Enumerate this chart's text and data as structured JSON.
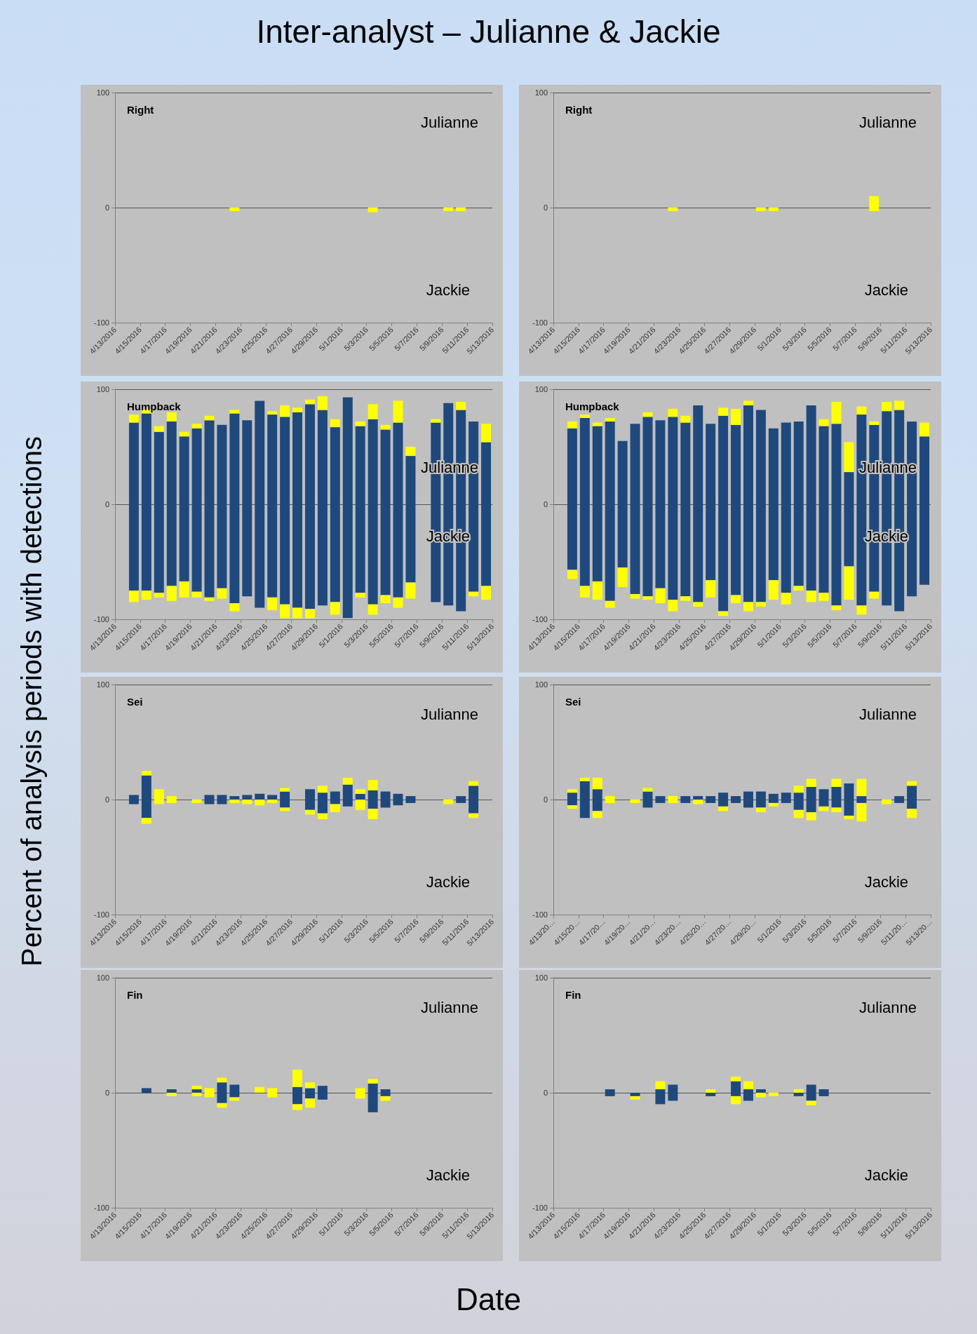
{
  "chart_data": [
    {
      "type": "bar",
      "title": "Right",
      "stacked": true,
      "grid": "y",
      "annotations": [
        "Julianne",
        "Jackie",
        "Inter-analyst – Julianne & Jackie"
      ],
      "ylabel": "Percent of analysis periods with detections",
      "x": [
        "2016-04-22T12:00",
        "2016-04-23T12:00",
        "2016-04-24T12:00",
        "2016-04-25T12:00",
        "2016-04-26T12:00",
        "2016-04-27T12:00",
        "2016-04-28T12:00",
        "2016-04-29T12:00",
        "2016-04-30T12:00",
        "2016-05-01T12:00",
        "2016-05-02T12:00",
        "2016-05-03T12:00",
        "2016-05-04T12:00",
        "2016-05-05T12:00",
        "2016-05-06T12:00",
        "2016-05-07T12:00",
        "2016-05-08T12:00",
        "2016-05-09T12:00",
        "2016-05-10T12:00"
      ],
      "xlim": [
        "2016-04-13",
        "2016-05-13"
      ],
      "xticks": [
        {
          "value": "2016-04-13",
          "label": "4/13/2016"
        },
        {
          "value": "2016-04-15",
          "label": "4/15/2016"
        },
        {
          "value": "2016-04-17",
          "label": "4/17/2016"
        },
        {
          "value": "2016-04-19",
          "label": "4/19/2016"
        },
        {
          "value": "2016-04-21",
          "label": "4/21/2016"
        },
        {
          "value": "2016-04-23",
          "label": "4/23/2016"
        },
        {
          "value": "2016-04-25",
          "label": "4/25/2016"
        },
        {
          "value": "2016-04-27",
          "label": "4/27/2016"
        },
        {
          "value": "2016-04-29",
          "label": "4/29/2016"
        },
        {
          "value": "2016-05-01",
          "label": "5/1/2016"
        },
        {
          "value": "2016-05-03",
          "label": "5/3/2016"
        },
        {
          "value": "2016-05-05",
          "label": "5/5/2016"
        },
        {
          "value": "2016-05-07",
          "label": "5/7/2016"
        },
        {
          "value": "2016-05-09",
          "label": "5/9/2016"
        },
        {
          "value": "2016-05-11",
          "label": "5/11/2016"
        },
        {
          "value": "2016-05-13",
          "label": "5/13/2016"
        }
      ],
      "ylim": [
        -100,
        100
      ],
      "yticks": [
        -100,
        0,
        100
      ],
      "series": [
        {
          "color": "#ffff00",
          "values": [
            -3,
            null,
            null,
            null,
            null,
            null,
            null,
            null,
            null,
            null,
            null,
            -4,
            null,
            null,
            null,
            null,
            null,
            -3,
            -3
          ]
        }
      ]
    },
    {
      "type": "bar",
      "title": "Right",
      "stacked": true,
      "grid": "y",
      "annotations": [
        "Julianne",
        "Jackie"
      ],
      "x": [
        "2016-04-22T12:00",
        "2016-04-23T12:00",
        "2016-04-24T12:00",
        "2016-04-25T12:00",
        "2016-04-26T12:00",
        "2016-04-27T12:00",
        "2016-04-28T12:00",
        "2016-04-29T12:00",
        "2016-04-30T12:00",
        "2016-05-01T12:00",
        "2016-05-02T12:00",
        "2016-05-03T12:00",
        "2016-05-04T12:00",
        "2016-05-05T12:00",
        "2016-05-06T12:00",
        "2016-05-07T12:00",
        "2016-05-08T12:00"
      ],
      "xlim": [
        "2016-04-13",
        "2016-05-13"
      ],
      "xticks": [
        {
          "value": "2016-04-13",
          "label": "4/13/2016"
        },
        {
          "value": "2016-04-15",
          "label": "4/15/2016"
        },
        {
          "value": "2016-04-17",
          "label": "4/17/2016"
        },
        {
          "value": "2016-04-19",
          "label": "4/19/2016"
        },
        {
          "value": "2016-04-21",
          "label": "4/21/2016"
        },
        {
          "value": "2016-04-23",
          "label": "4/23/2016"
        },
        {
          "value": "2016-04-25",
          "label": "4/25/2016"
        },
        {
          "value": "2016-04-27",
          "label": "4/27/2016"
        },
        {
          "value": "2016-04-29",
          "label": "4/29/2016"
        },
        {
          "value": "2016-05-01",
          "label": "5/1/2016"
        },
        {
          "value": "2016-05-03",
          "label": "5/3/2016"
        },
        {
          "value": "2016-05-05",
          "label": "5/5/2016"
        },
        {
          "value": "2016-05-07",
          "label": "5/7/2016"
        },
        {
          "value": "2016-05-09",
          "label": "5/9/2016"
        },
        {
          "value": "2016-05-11",
          "label": "5/11/2016"
        },
        {
          "value": "2016-05-13",
          "label": "5/13/2016"
        }
      ],
      "ylim": [
        -100,
        100
      ],
      "yticks": [
        -100,
        0,
        100
      ],
      "series": [
        {
          "color": "#ffff00",
          "values": [
            null,
            null,
            null,
            null,
            null,
            null,
            null,
            null,
            null,
            null,
            null,
            null,
            null,
            null,
            null,
            null,
            10
          ]
        },
        {
          "color": "#ffff00",
          "values": [
            -3,
            null,
            null,
            null,
            null,
            null,
            null,
            -3,
            -3,
            null,
            null,
            null,
            null,
            null,
            null,
            null,
            -3
          ]
        }
      ]
    },
    {
      "type": "bar",
      "title": "Humpback",
      "stacked": true,
      "grid": "y",
      "annotations": [
        "Julianne",
        "Jackie"
      ],
      "x": [
        "2016-04-14T12:00",
        "2016-04-15T12:00",
        "2016-04-16T12:00",
        "2016-04-17T12:00",
        "2016-04-18T12:00",
        "2016-04-19T12:00",
        "2016-04-20T12:00",
        "2016-04-21T12:00",
        "2016-04-22T12:00",
        "2016-04-23T12:00",
        "2016-04-24T12:00",
        "2016-04-25T12:00",
        "2016-04-26T12:00",
        "2016-04-27T12:00",
        "2016-04-28T12:00",
        "2016-04-29T12:00",
        "2016-04-30T12:00",
        "2016-05-01T12:00",
        "2016-05-02T12:00",
        "2016-05-03T12:00",
        "2016-05-04T12:00",
        "2016-05-05T12:00",
        "2016-05-06T12:00",
        "2016-05-07T12:00",
        "2016-05-08T12:00",
        "2016-05-09T12:00",
        "2016-05-10T12:00",
        "2016-05-11T12:00",
        "2016-05-12T12:00"
      ],
      "xlim": [
        "2016-04-13",
        "2016-05-13"
      ],
      "xticks": [
        {
          "value": "2016-04-13",
          "label": "4/13/2016"
        },
        {
          "value": "2016-04-15",
          "label": "4/15/2016"
        },
        {
          "value": "2016-04-17",
          "label": "4/17/2016"
        },
        {
          "value": "2016-04-19",
          "label": "4/19/2016"
        },
        {
          "value": "2016-04-21",
          "label": "4/21/2016"
        },
        {
          "value": "2016-04-23",
          "label": "4/23/2016"
        },
        {
          "value": "2016-04-25",
          "label": "4/25/2016"
        },
        {
          "value": "2016-04-27",
          "label": "4/27/2016"
        },
        {
          "value": "2016-04-29",
          "label": "4/29/2016"
        },
        {
          "value": "2016-05-01",
          "label": "5/1/2016"
        },
        {
          "value": "2016-05-03",
          "label": "5/3/2016"
        },
        {
          "value": "2016-05-05",
          "label": "5/5/2016"
        },
        {
          "value": "2016-05-07",
          "label": "5/7/2016"
        },
        {
          "value": "2016-05-09",
          "label": "5/9/2016"
        },
        {
          "value": "2016-05-11",
          "label": "5/11/2016"
        },
        {
          "value": "2016-05-13",
          "label": "5/13/2016"
        }
      ],
      "ylim": [
        -100,
        100
      ],
      "yticks": [
        -100,
        0,
        100
      ],
      "series": [
        {
          "color": "#1f497d",
          "values": [
            71,
            79,
            63,
            72,
            59,
            66,
            73,
            69,
            79,
            73,
            90,
            78,
            76,
            80,
            87,
            82,
            67,
            93,
            68,
            74,
            65,
            71,
            42,
            null,
            71,
            88,
            82,
            72,
            54
          ]
        },
        {
          "color": "#ffff00",
          "values": [
            7,
            4,
            5,
            8,
            4,
            4,
            4,
            null,
            3,
            null,
            null,
            3,
            10,
            4,
            4,
            12,
            7,
            null,
            4,
            13,
            4,
            19,
            8,
            null,
            3,
            null,
            7,
            null,
            16
          ]
        },
        {
          "color": "#1f497d",
          "values": [
            -75,
            -75,
            -77,
            -71,
            -67,
            -76,
            -81,
            -73,
            -86,
            -80,
            -90,
            -81,
            -87,
            -90,
            -91,
            -88,
            -85,
            -99,
            -77,
            -87,
            -79,
            -81,
            -68,
            null,
            -85,
            -88,
            -93,
            -76,
            -71
          ]
        },
        {
          "color": "#ffff00",
          "values": [
            -10,
            -8,
            -4,
            -13,
            -14,
            -5,
            -3,
            -9,
            -7,
            null,
            null,
            -11,
            -12,
            -9,
            -8,
            null,
            -11,
            null,
            -4,
            -9,
            -7,
            -9,
            -14,
            null,
            null,
            null,
            null,
            -4,
            -12
          ]
        }
      ]
    },
    {
      "type": "bar",
      "title": "Humpback",
      "stacked": true,
      "grid": "y",
      "annotations": [
        "Julianne",
        "Jackie"
      ],
      "x": [
        "2016-04-14T12:00",
        "2016-04-15T12:00",
        "2016-04-16T12:00",
        "2016-04-17T12:00",
        "2016-04-18T12:00",
        "2016-04-19T12:00",
        "2016-04-20T12:00",
        "2016-04-21T12:00",
        "2016-04-22T12:00",
        "2016-04-23T12:00",
        "2016-04-24T12:00",
        "2016-04-25T12:00",
        "2016-04-26T12:00",
        "2016-04-27T12:00",
        "2016-04-28T12:00",
        "2016-04-29T12:00",
        "2016-04-30T12:00",
        "2016-05-01T12:00",
        "2016-05-02T12:00",
        "2016-05-03T12:00",
        "2016-05-04T12:00",
        "2016-05-05T12:00",
        "2016-05-06T12:00",
        "2016-05-07T12:00",
        "2016-05-08T12:00",
        "2016-05-09T12:00",
        "2016-05-10T12:00",
        "2016-05-11T12:00",
        "2016-05-12T12:00"
      ],
      "xlim": [
        "2016-04-13",
        "2016-05-13"
      ],
      "xticks": [
        {
          "value": "2016-04-13",
          "label": "4/13/2016"
        },
        {
          "value": "2016-04-15",
          "label": "4/15/2016"
        },
        {
          "value": "2016-04-17",
          "label": "4/17/2016"
        },
        {
          "value": "2016-04-19",
          "label": "4/19/2016"
        },
        {
          "value": "2016-04-21",
          "label": "4/21/2016"
        },
        {
          "value": "2016-04-23",
          "label": "4/23/2016"
        },
        {
          "value": "2016-04-25",
          "label": "4/25/2016"
        },
        {
          "value": "2016-04-27",
          "label": "4/27/2016"
        },
        {
          "value": "2016-04-29",
          "label": "4/29/2016"
        },
        {
          "value": "2016-05-01",
          "label": "5/1/2016"
        },
        {
          "value": "2016-05-03",
          "label": "5/3/2016"
        },
        {
          "value": "2016-05-05",
          "label": "5/5/2016"
        },
        {
          "value": "2016-05-07",
          "label": "5/7/2016"
        },
        {
          "value": "2016-05-09",
          "label": "5/9/2016"
        },
        {
          "value": "2016-05-11",
          "label": "5/11/2016"
        },
        {
          "value": "2016-05-13",
          "label": "5/13/2016"
        }
      ],
      "ylim": [
        -100,
        100
      ],
      "yticks": [
        -100,
        0,
        100
      ],
      "series": [
        {
          "color": "#1f497d",
          "values": [
            66,
            75,
            68,
            72,
            55,
            70,
            76,
            73,
            76,
            71,
            86,
            70,
            77,
            69,
            86,
            82,
            66,
            71,
            72,
            86,
            68,
            70,
            28,
            78,
            69,
            81,
            82,
            72,
            59
          ]
        },
        {
          "color": "#ffff00",
          "values": [
            6,
            3,
            3,
            3,
            null,
            null,
            4,
            null,
            7,
            6,
            null,
            null,
            7,
            14,
            4,
            null,
            null,
            null,
            null,
            null,
            6,
            19,
            26,
            7,
            3,
            8,
            8,
            null,
            12
          ]
        },
        {
          "color": "#1f497d",
          "values": [
            -57,
            -71,
            -67,
            -84,
            -55,
            -78,
            -80,
            -73,
            -83,
            -80,
            -85,
            -66,
            -93,
            -79,
            -85,
            -85,
            -66,
            -77,
            -71,
            -75,
            -77,
            -88,
            -54,
            -88,
            -76,
            -88,
            -93,
            -80,
            -70
          ]
        },
        {
          "color": "#ffff00",
          "values": [
            -8,
            -10,
            -16,
            -6,
            -17,
            -4,
            -3,
            -13,
            -10,
            -4,
            -4,
            -15,
            -4,
            -7,
            -8,
            -4,
            -17,
            -10,
            -4,
            -10,
            -7,
            -4,
            -29,
            -8,
            -6,
            null,
            null,
            null,
            null
          ]
        }
      ]
    },
    {
      "type": "bar",
      "title": "Sei",
      "stacked": true,
      "grid": "y",
      "annotations": [
        "Julianne",
        "Jackie"
      ],
      "x": [
        "2016-04-14T12:00",
        "2016-04-15T12:00",
        "2016-04-16T12:00",
        "2016-04-17T12:00",
        "2016-04-18T12:00",
        "2016-04-19T12:00",
        "2016-04-20T12:00",
        "2016-04-21T12:00",
        "2016-04-22T12:00",
        "2016-04-23T12:00",
        "2016-04-24T12:00",
        "2016-04-25T12:00",
        "2016-04-26T12:00",
        "2016-04-27T12:00",
        "2016-04-28T12:00",
        "2016-04-29T12:00",
        "2016-04-30T12:00",
        "2016-05-01T12:00",
        "2016-05-02T12:00",
        "2016-05-03T12:00",
        "2016-05-04T12:00",
        "2016-05-05T12:00",
        "2016-05-06T12:00",
        "2016-05-07T12:00",
        "2016-05-08T12:00",
        "2016-05-09T12:00",
        "2016-05-10T12:00",
        "2016-05-11T12:00"
      ],
      "xlim": [
        "2016-04-13",
        "2016-05-13"
      ],
      "xticks": [
        {
          "value": "2016-04-13",
          "label": "4/13/2016"
        },
        {
          "value": "2016-04-15",
          "label": "4/15/2016"
        },
        {
          "value": "2016-04-17",
          "label": "4/17/2016"
        },
        {
          "value": "2016-04-19",
          "label": "4/19/2016"
        },
        {
          "value": "2016-04-21",
          "label": "4/21/2016"
        },
        {
          "value": "2016-04-23",
          "label": "4/23/2016"
        },
        {
          "value": "2016-04-25",
          "label": "4/25/2016"
        },
        {
          "value": "2016-04-27",
          "label": "4/27/2016"
        },
        {
          "value": "2016-04-29",
          "label": "4/29/2016"
        },
        {
          "value": "2016-05-01",
          "label": "5/1/2016"
        },
        {
          "value": "2016-05-03",
          "label": "5/3/2016"
        },
        {
          "value": "2016-05-05",
          "label": "5/5/2016"
        },
        {
          "value": "2016-05-07",
          "label": "5/7/2016"
        },
        {
          "value": "2016-05-09",
          "label": "5/9/2016"
        },
        {
          "value": "2016-05-11",
          "label": "5/11/2016"
        },
        {
          "value": "2016-05-13",
          "label": "5/13/2016"
        }
      ],
      "ylim": [
        -100,
        100
      ],
      "yticks": [
        -100,
        0,
        100
      ],
      "series": [
        {
          "color": "#1f497d",
          "values": [
            4,
            21,
            null,
            null,
            null,
            null,
            4,
            4,
            3,
            4,
            5,
            4,
            7,
            null,
            9,
            6,
            7,
            13,
            5,
            8,
            7,
            5,
            3,
            null,
            null,
            null,
            3,
            12
          ]
        },
        {
          "color": "#ffff00",
          "values": [
            null,
            4,
            9,
            3,
            null,
            null,
            null,
            null,
            null,
            null,
            null,
            null,
            3,
            null,
            null,
            6,
            null,
            6,
            4,
            9,
            null,
            null,
            null,
            null,
            null,
            null,
            null,
            4
          ]
        },
        {
          "color": "#1f497d",
          "values": [
            -4,
            -16,
            null,
            null,
            null,
            null,
            -4,
            -4,
            null,
            null,
            null,
            null,
            -7,
            null,
            -9,
            -12,
            -4,
            -6,
            null,
            -8,
            -7,
            -5,
            -3,
            null,
            null,
            null,
            -3,
            -12
          ]
        },
        {
          "color": "#ffff00",
          "values": [
            null,
            -5,
            -4,
            -3,
            null,
            -3,
            null,
            null,
            -3,
            -4,
            -5,
            -3,
            -3,
            null,
            -4,
            -5,
            -7,
            null,
            -9,
            -9,
            null,
            null,
            null,
            null,
            null,
            -4,
            null,
            -4
          ]
        }
      ]
    },
    {
      "type": "bar",
      "title": "Sei",
      "stacked": true,
      "grid": "y",
      "annotations": [
        "Julianne",
        "Jackie"
      ],
      "x": [
        "2016-04-14T12:00",
        "2016-04-15T12:00",
        "2016-04-16T12:00",
        "2016-04-17T12:00",
        "2016-04-18T12:00",
        "2016-04-19T12:00",
        "2016-04-20T12:00",
        "2016-04-21T12:00",
        "2016-04-22T12:00",
        "2016-04-23T12:00",
        "2016-04-24T12:00",
        "2016-04-25T12:00",
        "2016-04-26T12:00",
        "2016-04-27T12:00",
        "2016-04-28T12:00",
        "2016-04-29T12:00",
        "2016-04-30T12:00",
        "2016-05-01T12:00",
        "2016-05-02T12:00",
        "2016-05-03T12:00",
        "2016-05-04T12:00",
        "2016-05-05T12:00",
        "2016-05-06T12:00",
        "2016-05-07T12:00",
        "2016-05-08T12:00",
        "2016-05-09T12:00",
        "2016-05-10T12:00",
        "2016-05-11T12:00"
      ],
      "xlim": [
        "2016-04-13",
        "2016-05-13"
      ],
      "xticks": [
        {
          "value": "2016-04-13",
          "label": "4/13/20…"
        },
        {
          "value": "2016-04-15",
          "label": "4/15/20…"
        },
        {
          "value": "2016-04-17",
          "label": "4/17/20…"
        },
        {
          "value": "2016-04-19",
          "label": "4/19/20…"
        },
        {
          "value": "2016-04-21",
          "label": "4/21/20…"
        },
        {
          "value": "2016-04-23",
          "label": "4/23/20…"
        },
        {
          "value": "2016-04-25",
          "label": "4/25/20…"
        },
        {
          "value": "2016-04-27",
          "label": "4/27/20…"
        },
        {
          "value": "2016-04-29",
          "label": "4/29/20…"
        },
        {
          "value": "2016-05-01",
          "label": "5/1/2016"
        },
        {
          "value": "2016-05-03",
          "label": "5/3/2016"
        },
        {
          "value": "2016-05-05",
          "label": "5/5/2016"
        },
        {
          "value": "2016-05-07",
          "label": "5/7/2016"
        },
        {
          "value": "2016-05-09",
          "label": "5/9/2016"
        },
        {
          "value": "2016-05-11",
          "label": "5/11/20…"
        },
        {
          "value": "2016-05-13",
          "label": "5/13/20…"
        }
      ],
      "ylim": [
        -100,
        100
      ],
      "yticks": [
        -100,
        0,
        100
      ],
      "series": [
        {
          "color": "#1f497d",
          "values": [
            6,
            16,
            9,
            null,
            null,
            null,
            7,
            3,
            null,
            3,
            3,
            3,
            6,
            3,
            7,
            7,
            5,
            6,
            6,
            11,
            9,
            11,
            14,
            3,
            null,
            null,
            3,
            12
          ]
        },
        {
          "color": "#ffff00",
          "values": [
            3,
            3,
            10,
            3,
            null,
            null,
            3,
            null,
            3,
            null,
            null,
            null,
            null,
            null,
            null,
            null,
            null,
            null,
            6,
            7,
            null,
            7,
            null,
            15,
            null,
            null,
            null,
            4
          ]
        },
        {
          "color": "#1f497d",
          "values": [
            -5,
            -16,
            -10,
            null,
            null,
            null,
            -7,
            -3,
            null,
            -3,
            null,
            -3,
            -6,
            -3,
            -7,
            -7,
            -3,
            -3,
            -9,
            -11,
            -6,
            -7,
            -14,
            -3,
            null,
            null,
            -3,
            -8
          ]
        },
        {
          "color": "#ffff00",
          "values": [
            -3,
            null,
            -6,
            -3,
            null,
            -3,
            null,
            null,
            -3,
            null,
            -4,
            null,
            -4,
            null,
            null,
            -4,
            -3,
            null,
            -7,
            -7,
            -4,
            -4,
            -3,
            -16,
            null,
            -4,
            null,
            -8
          ]
        }
      ]
    },
    {
      "type": "bar",
      "title": "Fin",
      "stacked": true,
      "grid": "y",
      "annotations": [
        "Julianne",
        "Jackie"
      ],
      "xlabel": "Date",
      "x": [
        "2016-04-15T12:00",
        "2016-04-16T12:00",
        "2016-04-17T12:00",
        "2016-04-18T12:00",
        "2016-04-19T12:00",
        "2016-04-20T12:00",
        "2016-04-21T12:00",
        "2016-04-22T12:00",
        "2016-04-23T12:00",
        "2016-04-24T12:00",
        "2016-04-25T12:00",
        "2016-04-26T12:00",
        "2016-04-27T12:00",
        "2016-04-28T12:00",
        "2016-04-29T12:00",
        "2016-04-30T12:00",
        "2016-05-01T12:00",
        "2016-05-02T12:00",
        "2016-05-03T12:00",
        "2016-05-04T12:00"
      ],
      "xlim": [
        "2016-04-13",
        "2016-05-13"
      ],
      "xticks": [
        {
          "value": "2016-04-13",
          "label": "4/13/2016"
        },
        {
          "value": "2016-04-15",
          "label": "4/15/2016"
        },
        {
          "value": "2016-04-17",
          "label": "4/17/2016"
        },
        {
          "value": "2016-04-19",
          "label": "4/19/2016"
        },
        {
          "value": "2016-04-21",
          "label": "4/21/2016"
        },
        {
          "value": "2016-04-23",
          "label": "4/23/2016"
        },
        {
          "value": "2016-04-25",
          "label": "4/25/2016"
        },
        {
          "value": "2016-04-27",
          "label": "4/27/2016"
        },
        {
          "value": "2016-04-29",
          "label": "4/29/2016"
        },
        {
          "value": "2016-05-01",
          "label": "5/1/2016"
        },
        {
          "value": "2016-05-03",
          "label": "5/3/2016"
        },
        {
          "value": "2016-05-05",
          "label": "5/5/2016"
        },
        {
          "value": "2016-05-07",
          "label": "5/7/2016"
        },
        {
          "value": "2016-05-09",
          "label": "5/9/2016"
        },
        {
          "value": "2016-05-11",
          "label": "5/11/2016"
        },
        {
          "value": "2016-05-13",
          "label": "5/13/2016"
        }
      ],
      "ylim": [
        -100,
        100
      ],
      "yticks": [
        -100,
        0,
        100
      ],
      "series": [
        {
          "color": "#1f497d",
          "values": [
            4,
            null,
            3,
            null,
            3,
            null,
            9,
            7,
            null,
            null,
            null,
            null,
            5,
            4,
            6,
            null,
            null,
            null,
            8,
            3
          ]
        },
        {
          "color": "#ffff00",
          "values": [
            null,
            null,
            null,
            null,
            3,
            4,
            4,
            null,
            null,
            5,
            4,
            null,
            15,
            5,
            null,
            null,
            null,
            4,
            4,
            null
          ]
        },
        {
          "color": "#1f497d",
          "values": [
            null,
            null,
            null,
            null,
            null,
            null,
            -9,
            -4,
            null,
            null,
            null,
            null,
            -10,
            -5,
            -6,
            null,
            null,
            null,
            -17,
            -3
          ]
        },
        {
          "color": "#ffff00",
          "values": [
            null,
            null,
            -3,
            null,
            -3,
            -4,
            -4,
            -3,
            null,
            null,
            -4,
            null,
            -5,
            -8,
            null,
            null,
            null,
            -5,
            null,
            -4
          ]
        }
      ]
    },
    {
      "type": "bar",
      "title": "Fin",
      "stacked": true,
      "grid": "y",
      "annotations": [
        "Julianne",
        "Jackie"
      ],
      "x": [
        "2016-04-17T12:00",
        "2016-04-18T12:00",
        "2016-04-19T12:00",
        "2016-04-20T12:00",
        "2016-04-21T12:00",
        "2016-04-22T12:00",
        "2016-04-23T12:00",
        "2016-04-24T12:00",
        "2016-04-25T12:00",
        "2016-04-26T12:00",
        "2016-04-27T12:00",
        "2016-04-28T12:00",
        "2016-04-29T12:00",
        "2016-04-30T12:00",
        "2016-05-01T12:00",
        "2016-05-02T12:00",
        "2016-05-03T12:00",
        "2016-05-04T12:00"
      ],
      "xlim": [
        "2016-04-13",
        "2016-05-13"
      ],
      "xticks": [
        {
          "value": "2016-04-13",
          "label": "4/13/2016"
        },
        {
          "value": "2016-04-15",
          "label": "4/15/2016"
        },
        {
          "value": "2016-04-17",
          "label": "4/17/2016"
        },
        {
          "value": "2016-04-19",
          "label": "4/19/2016"
        },
        {
          "value": "2016-04-21",
          "label": "4/21/2016"
        },
        {
          "value": "2016-04-23",
          "label": "4/23/2016"
        },
        {
          "value": "2016-04-25",
          "label": "4/25/2016"
        },
        {
          "value": "2016-04-27",
          "label": "4/27/2016"
        },
        {
          "value": "2016-04-29",
          "label": "4/29/2016"
        },
        {
          "value": "2016-05-01",
          "label": "5/1/2016"
        },
        {
          "value": "2016-05-03",
          "label": "5/3/2016"
        },
        {
          "value": "2016-05-05",
          "label": "5/5/2016"
        },
        {
          "value": "2016-05-07",
          "label": "5/7/2016"
        },
        {
          "value": "2016-05-09",
          "label": "5/9/2016"
        },
        {
          "value": "2016-05-11",
          "label": "5/11/2016"
        },
        {
          "value": "2016-05-13",
          "label": "5/13/2016"
        }
      ],
      "ylim": [
        -100,
        100
      ],
      "yticks": [
        -100,
        0,
        100
      ],
      "series": [
        {
          "color": "#1f497d",
          "values": [
            3,
            null,
            null,
            null,
            3,
            7,
            null,
            null,
            null,
            null,
            10,
            3,
            3,
            null,
            null,
            null,
            7,
            3
          ]
        },
        {
          "color": "#ffff00",
          "values": [
            null,
            null,
            null,
            null,
            7,
            null,
            null,
            null,
            3,
            null,
            4,
            7,
            null,
            null,
            null,
            3,
            null,
            null
          ]
        },
        {
          "color": "#1f497d",
          "values": [
            -3,
            null,
            -3,
            null,
            -10,
            -7,
            null,
            null,
            -3,
            null,
            -3,
            -7,
            null,
            null,
            null,
            -3,
            -7,
            -3
          ]
        },
        {
          "color": "#ffff00",
          "values": [
            null,
            null,
            -3,
            null,
            null,
            null,
            null,
            null,
            null,
            null,
            -7,
            null,
            -4,
            -3,
            null,
            null,
            -4,
            null
          ]
        }
      ]
    }
  ]
}
